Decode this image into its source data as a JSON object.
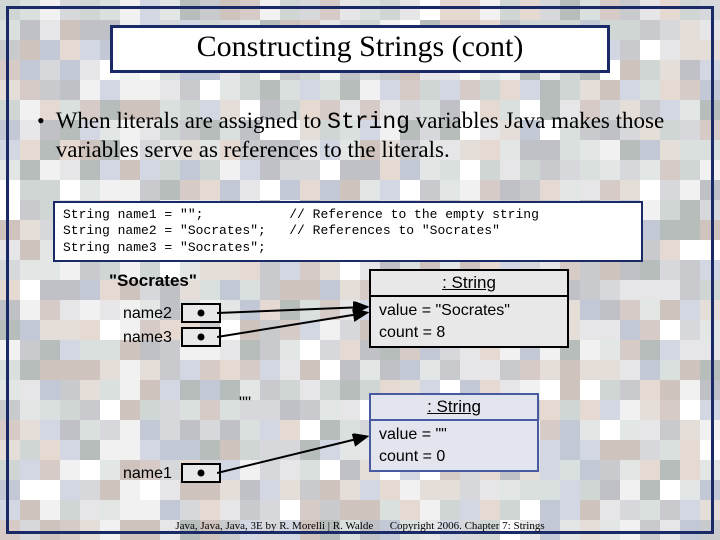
{
  "title": "Constructing Strings (cont)",
  "bullet": {
    "prefix": "When literals are assigned to ",
    "mono": "String",
    "suffix": " variables Java makes those variables serve as references to the literals."
  },
  "code": "String name1 = \"\";           // Reference to the empty string\nString name2 = \"Socrates\";   // References to \"Socrates\"\nString name3 = \"Socrates\";",
  "diagram": {
    "socrates_label": "\"Socrates\"",
    "empty_label": "\"\"",
    "var_labels": {
      "name1": "name1",
      "name2": "name2",
      "name3": "name3"
    },
    "obj1": {
      "header": ": String",
      "line1": "value = \"Socrates\"",
      "line2": "count = 8",
      "box_color": "#e8e8e8",
      "border_color": "#000000"
    },
    "obj2": {
      "header": ": String",
      "line1": "value = \"\"",
      "line2": "count = 0",
      "box_color": "#e2e4ee",
      "border_color": "#4a5aa0"
    },
    "arrow_color": "#000000"
  },
  "footer": {
    "left": "Java, Java, Java, 3E by R. Morelli | R. Walde",
    "right": "Copyright 2006.  Chapter 7: Strings"
  },
  "mosaic_palette": [
    "#ffffff",
    "#f1f1f2",
    "#e6e6e8",
    "#d7d8dc",
    "#c9cacd",
    "#bfc1c7",
    "#b6bdbb",
    "#cfd6d4",
    "#d9e0de",
    "#e2e6e5",
    "#d6cbc6",
    "#e5ddd8",
    "#cfc3bd",
    "#c2c8d6",
    "#d2d7e3",
    "#e6d9d1"
  ]
}
